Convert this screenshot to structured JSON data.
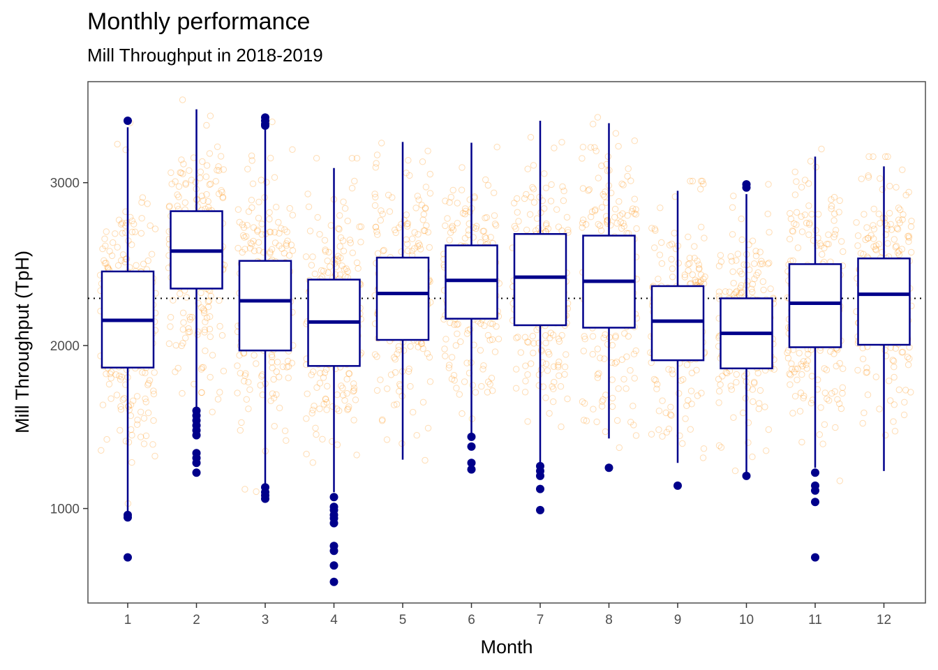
{
  "chart_data": {
    "type": "box",
    "title": "Monthly performance",
    "subtitle": "Mill Throughput in 2018-2019",
    "xlabel": "Month",
    "ylabel": "Mill Throughput (TpH)",
    "categories": [
      "1",
      "2",
      "3",
      "4",
      "5",
      "6",
      "7",
      "8",
      "9",
      "10",
      "11",
      "12"
    ],
    "yticks": [
      1000,
      2000,
      3000
    ],
    "ylim": [
      420,
      3620
    ],
    "reference_line": {
      "value": 2290,
      "style": "dotted"
    },
    "grid": false,
    "colors": {
      "box": "#00008b",
      "points": "#ff8c00"
    },
    "boxes": [
      {
        "month": "1",
        "q1": 1865,
        "median": 2155,
        "q3": 2455,
        "whisker_low": 980,
        "whisker_high": 3340,
        "outliers": [
          3380,
          960,
          945,
          700
        ]
      },
      {
        "month": "2",
        "q1": 2350,
        "median": 2580,
        "q3": 2825,
        "whisker_low": 1610,
        "whisker_high": 3450,
        "outliers": [
          1600,
          1570,
          1540,
          1510,
          1480,
          1450,
          1340,
          1310,
          1280,
          1220
        ]
      },
      {
        "month": "3",
        "q1": 1970,
        "median": 2275,
        "q3": 2520,
        "whisker_low": 1140,
        "whisker_high": 3330,
        "outliers": [
          3400,
          3380,
          3360,
          3350,
          1130,
          1100,
          1080,
          1060
        ]
      },
      {
        "month": "4",
        "q1": 1875,
        "median": 2145,
        "q3": 2405,
        "whisker_low": 1100,
        "whisker_high": 3090,
        "outliers": [
          1070,
          1010,
          990,
          960,
          940,
          910,
          770,
          740,
          650,
          550
        ]
      },
      {
        "month": "5",
        "q1": 2035,
        "median": 2320,
        "q3": 2540,
        "whisker_low": 1300,
        "whisker_high": 3250,
        "outliers": []
      },
      {
        "month": "6",
        "q1": 2165,
        "median": 2400,
        "q3": 2615,
        "whisker_low": 1460,
        "whisker_high": 3245,
        "outliers": [
          1440,
          1380,
          1280,
          1240
        ]
      },
      {
        "month": "7",
        "q1": 2125,
        "median": 2420,
        "q3": 2685,
        "whisker_low": 1280,
        "whisker_high": 3380,
        "outliers": [
          1260,
          1230,
          1200,
          1120,
          990
        ]
      },
      {
        "month": "8",
        "q1": 2110,
        "median": 2395,
        "q3": 2675,
        "whisker_low": 1430,
        "whisker_high": 3365,
        "outliers": [
          1250
        ]
      },
      {
        "month": "9",
        "q1": 1910,
        "median": 2150,
        "q3": 2365,
        "whisker_low": 1280,
        "whisker_high": 2950,
        "outliers": [
          1140
        ]
      },
      {
        "month": "10",
        "q1": 1860,
        "median": 2075,
        "q3": 2290,
        "whisker_low": 1210,
        "whisker_high": 2930,
        "outliers": [
          2990,
          2970,
          1200
        ]
      },
      {
        "month": "11",
        "q1": 1990,
        "median": 2260,
        "q3": 2500,
        "whisker_low": 1250,
        "whisker_high": 3160,
        "outliers": [
          1220,
          1140,
          1110,
          1040,
          700
        ]
      },
      {
        "month": "12",
        "q1": 2005,
        "median": 2315,
        "q3": 2535,
        "whisker_low": 1230,
        "whisker_high": 3100,
        "outliers": []
      }
    ]
  }
}
